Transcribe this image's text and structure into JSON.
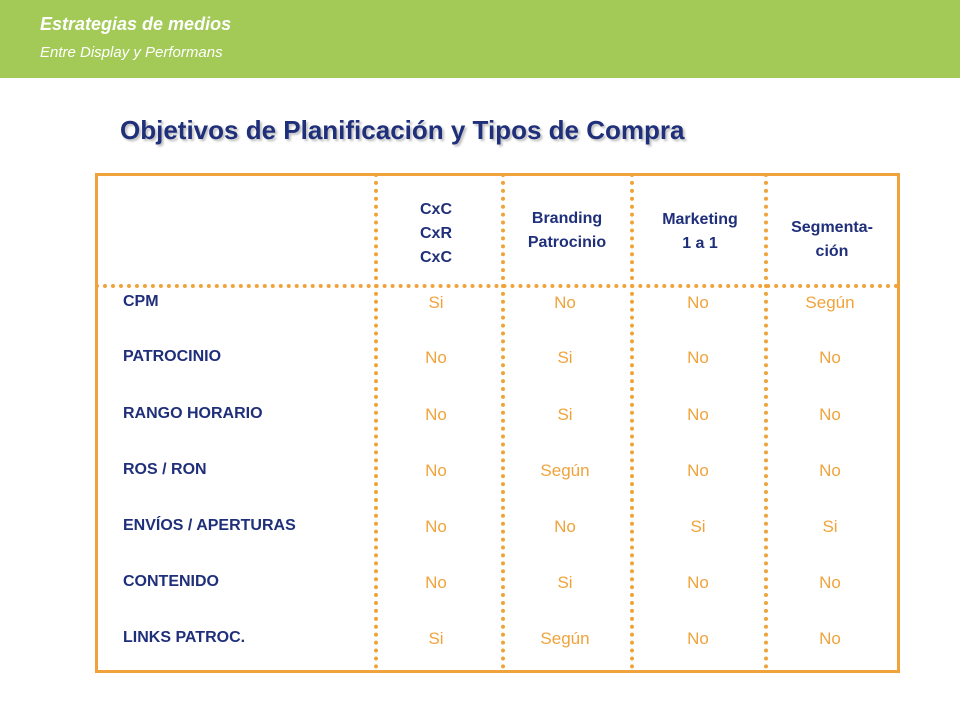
{
  "banner": {
    "title": "Estrategias de medios",
    "subtitle": "Entre Display  y Performans"
  },
  "page_title": "Objetivos de Planificación y Tipos de Compra",
  "colors": {
    "banner_green": "#a3c957",
    "title_blue": "#1f2f7a",
    "accent_orange": "#f0a33b"
  },
  "table": {
    "columns": [
      {
        "lines": [
          "CxC",
          "CxR",
          "CxC"
        ]
      },
      {
        "lines": [
          "Branding",
          "Patrocinio"
        ]
      },
      {
        "lines": [
          "Marketing",
          "1 a 1"
        ]
      },
      {
        "lines": [
          "Segmenta-",
          "ción"
        ]
      }
    ],
    "rows": [
      {
        "label": "CPM",
        "values": [
          "Si",
          "No",
          "No",
          "Según"
        ]
      },
      {
        "label": "PATROCINIO",
        "values": [
          "No",
          "Si",
          "No",
          "No"
        ]
      },
      {
        "label": "RANGO HORARIO",
        "values": [
          "No",
          "Si",
          "No",
          "No"
        ]
      },
      {
        "label": "ROS / RON",
        "values": [
          "No",
          "Según",
          "No",
          "No"
        ]
      },
      {
        "label": "ENVÍOS / APERTURAS",
        "values": [
          "No",
          "No",
          "Si",
          "Si"
        ]
      },
      {
        "label": "CONTENIDO",
        "values": [
          "No",
          "Si",
          "No",
          "No"
        ]
      },
      {
        "label": "LINKS PATROC.",
        "values": [
          "Si",
          "Según",
          "No",
          "No"
        ]
      }
    ]
  }
}
